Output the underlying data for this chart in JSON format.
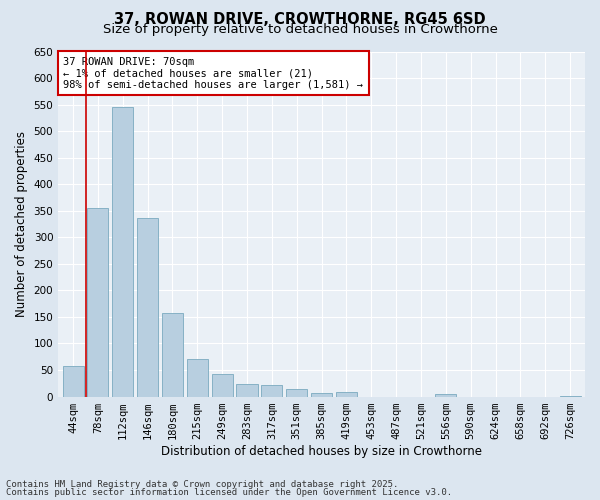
{
  "title_line1": "37, ROWAN DRIVE, CROWTHORNE, RG45 6SD",
  "title_line2": "Size of property relative to detached houses in Crowthorne",
  "xlabel": "Distribution of detached houses by size in Crowthorne",
  "ylabel": "Number of detached properties",
  "categories": [
    "44sqm",
    "78sqm",
    "112sqm",
    "146sqm",
    "180sqm",
    "215sqm",
    "249sqm",
    "283sqm",
    "317sqm",
    "351sqm",
    "385sqm",
    "419sqm",
    "453sqm",
    "487sqm",
    "521sqm",
    "556sqm",
    "590sqm",
    "624sqm",
    "658sqm",
    "692sqm",
    "726sqm"
  ],
  "values": [
    58,
    355,
    545,
    337,
    157,
    70,
    43,
    23,
    22,
    14,
    7,
    8,
    0,
    0,
    0,
    4,
    0,
    0,
    0,
    0,
    2
  ],
  "bar_color": "#b8cfe0",
  "bar_edge_color": "#7aaabf",
  "highlight_color": "#cc0000",
  "red_line_x": 0.5,
  "ylim": [
    0,
    650
  ],
  "yticks": [
    0,
    50,
    100,
    150,
    200,
    250,
    300,
    350,
    400,
    450,
    500,
    550,
    600,
    650
  ],
  "annotation_title": "37 ROWAN DRIVE: 70sqm",
  "annotation_line1": "← 1% of detached houses are smaller (21)",
  "annotation_line2": "98% of semi-detached houses are larger (1,581) →",
  "annotation_box_facecolor": "#ffffff",
  "annotation_box_edgecolor": "#cc0000",
  "footer_line1": "Contains HM Land Registry data © Crown copyright and database right 2025.",
  "footer_line2": "Contains public sector information licensed under the Open Government Licence v3.0.",
  "fig_bg_color": "#dce6f0",
  "plot_bg_color": "#eaf0f6",
  "grid_color": "#ffffff",
  "title1_fontsize": 10.5,
  "title2_fontsize": 9.5,
  "axis_label_fontsize": 8.5,
  "tick_fontsize": 7.5,
  "annot_fontsize": 7.5,
  "footer_fontsize": 6.5
}
